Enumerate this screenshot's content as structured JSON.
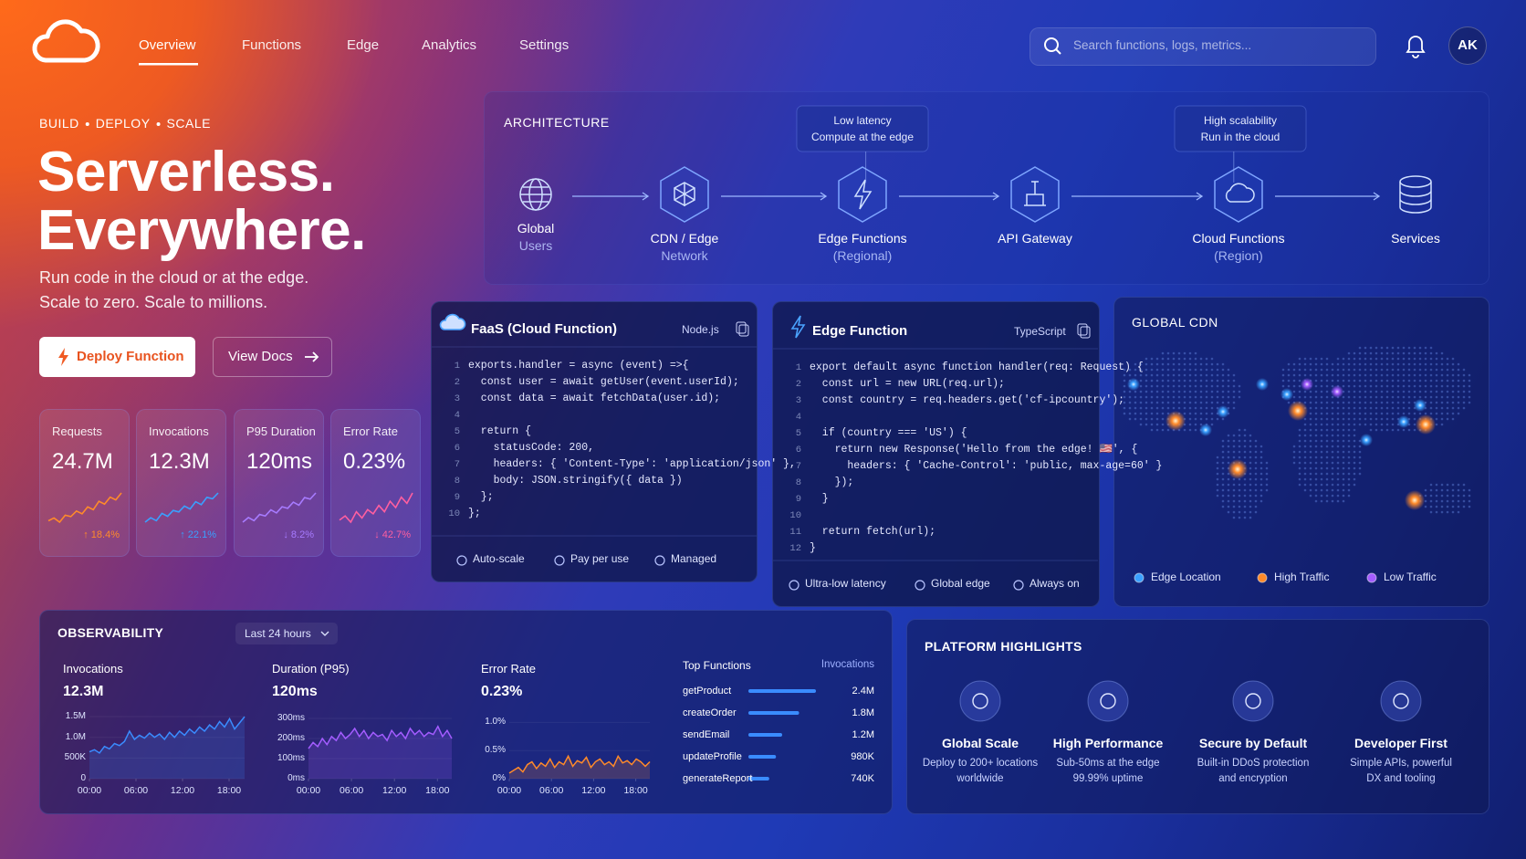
{
  "nav": {
    "links": [
      "Overview",
      "Functions",
      "Edge",
      "Analytics",
      "Settings"
    ],
    "search_placeholder": "Search functions, logs, metrics...",
    "avatar": "AK"
  },
  "hero": {
    "eyebrow": [
      "BUILD",
      "DEPLOY",
      "SCALE"
    ],
    "title_lines": [
      "Serverless.",
      "Everywhere."
    ],
    "subtitle_lines": [
      "Run code in the cloud or at the edge.",
      "Scale to zero. Scale to millions."
    ],
    "primary_button": "Deploy Function",
    "secondary_button": "View Docs"
  },
  "stats": [
    {
      "label": "Requests",
      "value": "24.7M",
      "change": "↑ 18.4%",
      "color": "#ff8a2a",
      "trend": [
        10,
        12,
        9,
        14,
        13,
        17,
        15,
        20,
        18,
        24,
        22,
        27,
        25,
        30
      ]
    },
    {
      "label": "Invocations",
      "value": "12.3M",
      "change": "↑ 22.1%",
      "color": "#3aa0ff",
      "trend": [
        8,
        11,
        9,
        14,
        12,
        16,
        15,
        19,
        17,
        22,
        20,
        25,
        24,
        28
      ]
    },
    {
      "label": "P95 Duration",
      "value": "120ms",
      "change": "↓ 8.2%",
      "color": "#a77bff",
      "trend": [
        10,
        13,
        11,
        15,
        14,
        18,
        16,
        20,
        19,
        23,
        21,
        26,
        25,
        29
      ]
    },
    {
      "label": "Error Rate",
      "value": "0.23%",
      "change": "↓ 42.7%",
      "color": "#ff5fa0",
      "trend": [
        12,
        14,
        11,
        16,
        13,
        17,
        15,
        19,
        16,
        21,
        18,
        23,
        20,
        25
      ]
    }
  ],
  "architecture": {
    "title": "ARCHITECTURE",
    "nodes": [
      {
        "lines": [
          "Global",
          "Users"
        ]
      },
      {
        "lines": [
          "CDN / Edge",
          "Network"
        ]
      },
      {
        "lines": [
          "Edge Functions",
          "(Regional)"
        ]
      },
      {
        "lines": [
          "API Gateway"
        ]
      },
      {
        "lines": [
          "Cloud Functions",
          "(Region)"
        ]
      },
      {
        "lines": [
          "Services"
        ]
      }
    ],
    "callouts": [
      {
        "lines": [
          "Low latency",
          "Compute at the edge"
        ]
      },
      {
        "lines": [
          "High scalability",
          "Run in the cloud"
        ]
      }
    ]
  },
  "faas": {
    "title": "FaaS (Cloud Function)",
    "runtime": "Node.js",
    "code": [
      {
        "n": 1,
        "code": "exports.handler = async (event) =>{"
      },
      {
        "n": 2,
        "code": "  const user = await getUser(event.userId);"
      },
      {
        "n": 3,
        "code": "  const data = await fetchData(user.id);"
      },
      {
        "n": 4
      },
      {
        "n": 5,
        "code": "  return {"
      },
      {
        "n": 6,
        "code": "    statusCode: 200,"
      },
      {
        "n": 7,
        "code": "    headers: { 'Content-Type': 'application/json' },"
      },
      {
        "n": 8,
        "code": "    body: JSON.stringify({ data })"
      },
      {
        "n": 9,
        "code": "  };"
      },
      {
        "n": 10,
        "code": "};"
      }
    ],
    "features": [
      "Auto-scale",
      "Pay per use",
      "Managed"
    ]
  },
  "edge": {
    "title": "Edge Function",
    "runtime": "TypeScript",
    "code": [
      {
        "n": 1,
        "code": "export default async function handler(req: Request) {"
      },
      {
        "n": 2,
        "code": "  const url = new URL(req.url);"
      },
      {
        "n": 3,
        "code": "  const country = req.headers.get('cf-ipcountry');"
      },
      {
        "n": 4
      },
      {
        "n": 5,
        "code": "  if (country === 'US') {"
      },
      {
        "n": 6,
        "code": "    return new Response('Hello from the edge! 🇺🇸', {"
      },
      {
        "n": 7,
        "code": "      headers: { 'Cache-Control': 'public, max-age=60' }"
      },
      {
        "n": 8,
        "code": "    });"
      },
      {
        "n": 9,
        "code": "  }"
      },
      {
        "n": 10
      },
      {
        "n": 11,
        "code": "  return fetch(url);"
      },
      {
        "n": 12,
        "code": "}"
      }
    ],
    "features": [
      "Ultra-low latency",
      "Global edge",
      "Always on"
    ]
  },
  "cdn": {
    "title": "GLOBAL CDN",
    "legend": [
      {
        "name": "Edge Location",
        "color": "#3aa0ff"
      },
      {
        "name": "High Traffic",
        "color": "#ff8a2a"
      },
      {
        "name": "Low Traffic",
        "color": "#a35cff"
      }
    ]
  },
  "observability": {
    "title": "OBSERVABILITY",
    "range": "Last 24 hours",
    "charts": [
      {
        "type": "line",
        "title": "Invocations",
        "value": "12.3M",
        "color": "#3a8cff",
        "ylim": [
          0,
          1700000
        ],
        "yticks": [
          0,
          {
            "value": 500000,
            "label": "500K"
          },
          {
            "value": 1000000,
            "label": "1.0M"
          },
          {
            "value": 1500000,
            "label": "1.5M"
          }
        ],
        "xlim": [
          0,
          20
        ],
        "xticks": [
          {
            "value": 0,
            "label": "00:00"
          },
          {
            "value": 6,
            "label": "06:00"
          },
          {
            "value": 12,
            "label": "12:00"
          },
          {
            "value": 18,
            "label": "18:00"
          }
        ],
        "values": [
          650000,
          700000,
          620000,
          780000,
          720000,
          850000,
          800000,
          900000,
          1150000,
          950000,
          1050000,
          980000,
          1100000,
          1000000,
          1080000,
          950000,
          1120000,
          1000000,
          1150000,
          1050000,
          1200000,
          1100000,
          1250000,
          1150000,
          1300000,
          1200000,
          1380000,
          1250000,
          1450000,
          1200000,
          1350000,
          1500000
        ]
      },
      {
        "type": "line",
        "title": "Duration (P95)",
        "value": "120ms",
        "color": "#a35cff",
        "ylim": [
          0,
          350
        ],
        "yticks": [
          {
            "value": 0,
            "label": "0ms"
          },
          {
            "value": 100,
            "label": "100ms"
          },
          {
            "value": 200,
            "label": "200ms"
          },
          {
            "value": 300,
            "label": "300ms"
          }
        ],
        "xlim": [
          0,
          20
        ],
        "xticks": [
          {
            "value": 0,
            "label": "00:00"
          },
          {
            "value": 6,
            "label": "06:00"
          },
          {
            "value": 12,
            "label": "12:00"
          },
          {
            "value": 18,
            "label": "18:00"
          }
        ],
        "values": [
          150,
          180,
          160,
          200,
          170,
          210,
          190,
          230,
          200,
          220,
          250,
          210,
          240,
          200,
          230,
          210,
          220,
          190,
          240,
          210,
          230,
          200,
          250,
          220,
          240,
          210,
          230,
          220,
          260,
          210,
          240,
          200
        ]
      },
      {
        "type": "line",
        "title": "Error Rate",
        "value": "0.23%",
        "color": "#ff8a2a",
        "ylim": [
          0,
          1.25
        ],
        "yticks": [
          {
            "value": 0,
            "label": "0%"
          },
          {
            "value": 0.5,
            "label": "0.5%"
          },
          {
            "value": 1,
            "label": "1.0%"
          }
        ],
        "xlim": [
          0,
          20
        ],
        "xticks": [
          {
            "value": 0,
            "label": "00:00"
          },
          {
            "value": 6,
            "label": "06:00"
          },
          {
            "value": 12,
            "label": "12:00"
          },
          {
            "value": 18,
            "label": "18:00"
          }
        ],
        "values": [
          0.1,
          0.15,
          0.2,
          0.12,
          0.25,
          0.3,
          0.18,
          0.28,
          0.22,
          0.35,
          0.2,
          0.3,
          0.25,
          0.4,
          0.22,
          0.32,
          0.28,
          0.38,
          0.2,
          0.3,
          0.35,
          0.25,
          0.3,
          0.22,
          0.4,
          0.28,
          0.32,
          0.25,
          0.35,
          0.3,
          0.22,
          0.3
        ]
      }
    ],
    "top_functions": {
      "title": "Top Functions",
      "value_header": "Invocations",
      "color": "#3a8cff",
      "names": [
        "getProduct",
        "createOrder",
        "sendEmail",
        "updateProfile",
        "generateReport"
      ],
      "values": [
        2400000,
        1800000,
        1200000,
        980000,
        740000
      ],
      "value_labels": [
        "2.4M",
        "1.8M",
        "1.2M",
        "980K",
        "740K"
      ]
    }
  },
  "highlights": {
    "title": "PLATFORM HIGHLIGHTS",
    "items": [
      {
        "title": "Global Scale",
        "desc": [
          "Deploy to 200+ locations",
          "worldwide"
        ]
      },
      {
        "title": "High Performance",
        "desc": [
          "Sub-50ms at the edge",
          "99.99% uptime"
        ]
      },
      {
        "title": "Secure by Default",
        "desc": [
          "Built-in DDoS protection",
          "and encryption"
        ]
      },
      {
        "title": "Developer First",
        "desc": [
          "Simple APIs, powerful",
          "DX and tooling"
        ]
      }
    ]
  }
}
